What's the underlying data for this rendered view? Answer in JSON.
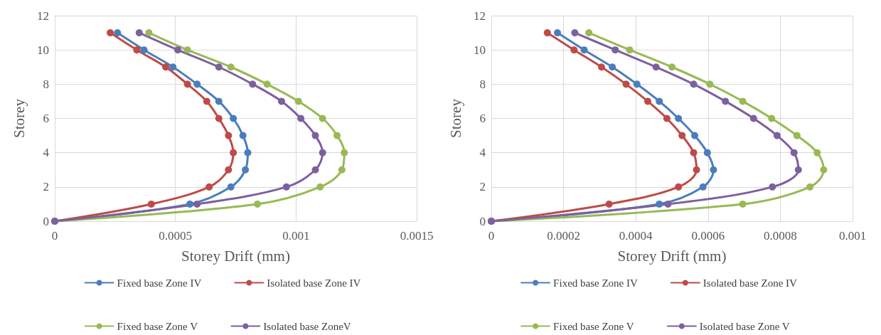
{
  "chart_data": [
    {
      "type": "line",
      "xlabel": "Storey Drift (mm)",
      "ylabel": "Storey",
      "xlim": [
        0,
        0.0015
      ],
      "xticks": [
        0,
        0.0005,
        0.001,
        0.0015
      ],
      "ylim": [
        0,
        12
      ],
      "yticks": [
        0,
        2,
        4,
        6,
        8,
        10,
        12
      ],
      "grid": true,
      "legend": "bottom",
      "marker": "circle",
      "line_style": "solid",
      "series": [
        {
          "name": "Fixed base Zone IV",
          "color": "#4a7ebb",
          "x": [
            0,
            0.00056,
            0.00073,
            0.00079,
            0.0008,
            0.00078,
            0.00074,
            0.00068,
            0.00059,
            0.00049,
            0.00037,
            0.00026
          ],
          "values": [
            0,
            1,
            2,
            3,
            4,
            5,
            6,
            7,
            8,
            9,
            10,
            11
          ]
        },
        {
          "name": "Isolated base Zone IV",
          "color": "#be4b48",
          "x": [
            0,
            0.0004,
            0.00064,
            0.00072,
            0.00074,
            0.00072,
            0.00068,
            0.00063,
            0.00055,
            0.00046,
            0.00034,
            0.00023
          ],
          "values": [
            0,
            1,
            2,
            3,
            4,
            5,
            6,
            7,
            8,
            9,
            10,
            11
          ]
        },
        {
          "name": "Fixed base Zone V",
          "color": "#98b954",
          "x": [
            0,
            0.00084,
            0.0011,
            0.00119,
            0.0012,
            0.00117,
            0.00111,
            0.00101,
            0.00088,
            0.00073,
            0.00055,
            0.00039
          ],
          "values": [
            0,
            1,
            2,
            3,
            4,
            5,
            6,
            7,
            8,
            9,
            10,
            11
          ]
        },
        {
          "name": "Isolated base ZoneV",
          "color": "#7d60a0",
          "x": [
            0,
            0.00059,
            0.00096,
            0.00108,
            0.00111,
            0.00108,
            0.00102,
            0.00094,
            0.00082,
            0.00068,
            0.00051,
            0.00035
          ],
          "values": [
            0,
            1,
            2,
            3,
            4,
            5,
            6,
            7,
            8,
            9,
            10,
            11
          ]
        }
      ]
    },
    {
      "type": "line",
      "xlabel": "Storey Drift (mm)",
      "ylabel": "Storey",
      "xlim": [
        0,
        0.001
      ],
      "xticks": [
        0,
        0.0002,
        0.0004,
        0.0006,
        0.0008,
        0.001
      ],
      "ylim": [
        0,
        12
      ],
      "yticks": [
        0,
        2,
        4,
        6,
        8,
        10,
        12
      ],
      "grid": true,
      "legend": "bottom",
      "marker": "circle",
      "line_style": "solid",
      "series": [
        {
          "name": "Fixed base Zone IV",
          "color": "#4a7ebb",
          "x": [
            0,
            0.000465,
            0.000586,
            0.000615,
            0.000598,
            0.000563,
            0.000518,
            0.000465,
            0.000403,
            0.000335,
            0.000257,
            0.000183
          ],
          "values": [
            0,
            1,
            2,
            3,
            4,
            5,
            6,
            7,
            8,
            9,
            10,
            11
          ]
        },
        {
          "name": "Isolated base Zone IV",
          "color": "#be4b48",
          "x": [
            0,
            0.000326,
            0.000518,
            0.000568,
            0.00056,
            0.000528,
            0.000486,
            0.000433,
            0.000373,
            0.000305,
            0.000229,
            0.000155
          ],
          "values": [
            0,
            1,
            2,
            3,
            4,
            5,
            6,
            7,
            8,
            9,
            10,
            11
          ]
        },
        {
          "name": "Fixed base Zone V",
          "color": "#98b954",
          "x": [
            0,
            0.000696,
            0.000882,
            0.00092,
            0.000902,
            0.000846,
            0.000776,
            0.000696,
            0.000605,
            0.0005,
            0.000383,
            0.00027
          ],
          "values": [
            0,
            1,
            2,
            3,
            4,
            5,
            6,
            7,
            8,
            9,
            10,
            11
          ]
        },
        {
          "name": "Isolated base Zone V",
          "color": "#7d60a0",
          "x": [
            0,
            0.000489,
            0.000778,
            0.00085,
            0.000838,
            0.000791,
            0.000726,
            0.000648,
            0.00056,
            0.000456,
            0.000343,
            0.000231
          ],
          "values": [
            0,
            1,
            2,
            3,
            4,
            5,
            6,
            7,
            8,
            9,
            10,
            11
          ]
        }
      ]
    }
  ]
}
